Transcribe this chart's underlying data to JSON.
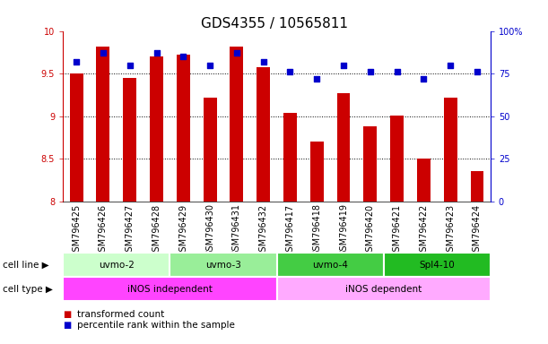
{
  "title": "GDS4355 / 10565811",
  "samples": [
    "GSM796425",
    "GSM796426",
    "GSM796427",
    "GSM796428",
    "GSM796429",
    "GSM796430",
    "GSM796431",
    "GSM796432",
    "GSM796417",
    "GSM796418",
    "GSM796419",
    "GSM796420",
    "GSM796421",
    "GSM796422",
    "GSM796423",
    "GSM796424"
  ],
  "transformed_count": [
    9.5,
    9.82,
    9.45,
    9.7,
    9.72,
    9.22,
    9.82,
    9.57,
    9.04,
    8.7,
    9.27,
    8.88,
    9.01,
    8.5,
    9.22,
    8.35
  ],
  "percentile_rank": [
    82,
    87,
    80,
    87,
    85,
    80,
    87,
    82,
    76,
    72,
    80,
    76,
    76,
    72,
    80,
    76
  ],
  "bar_color": "#cc0000",
  "dot_color": "#0000cc",
  "ylim_left": [
    8,
    10
  ],
  "ylim_right": [
    0,
    100
  ],
  "yticks_left": [
    8,
    8.5,
    9,
    9.5,
    10
  ],
  "ytick_labels_left": [
    "8",
    "8.5",
    "9",
    "9.5",
    "10"
  ],
  "yticks_right": [
    0,
    25,
    50,
    75,
    100
  ],
  "ytick_labels_right": [
    "0",
    "25",
    "50",
    "75",
    "100%"
  ],
  "cell_line_groups": [
    {
      "label": "uvmo-2",
      "start": 0,
      "end": 3,
      "color": "#ccffcc"
    },
    {
      "label": "uvmo-3",
      "start": 4,
      "end": 7,
      "color": "#99ee99"
    },
    {
      "label": "uvmo-4",
      "start": 8,
      "end": 11,
      "color": "#44cc44"
    },
    {
      "label": "Spl4-10",
      "start": 12,
      "end": 15,
      "color": "#22bb22"
    }
  ],
  "cell_type_groups": [
    {
      "label": "iNOS independent",
      "start": 0,
      "end": 7,
      "color": "#ff44ff"
    },
    {
      "label": "iNOS dependent",
      "start": 8,
      "end": 15,
      "color": "#ffaaff"
    }
  ],
  "legend_items": [
    {
      "color": "#cc0000",
      "label": "transformed count"
    },
    {
      "color": "#0000cc",
      "label": "percentile rank within the sample"
    }
  ],
  "cell_line_label": "cell line",
  "cell_type_label": "cell type",
  "plot_bg_color": "#ffffff",
  "title_fontsize": 11,
  "tick_fontsize": 7,
  "label_fontsize": 8,
  "bar_width": 0.5
}
